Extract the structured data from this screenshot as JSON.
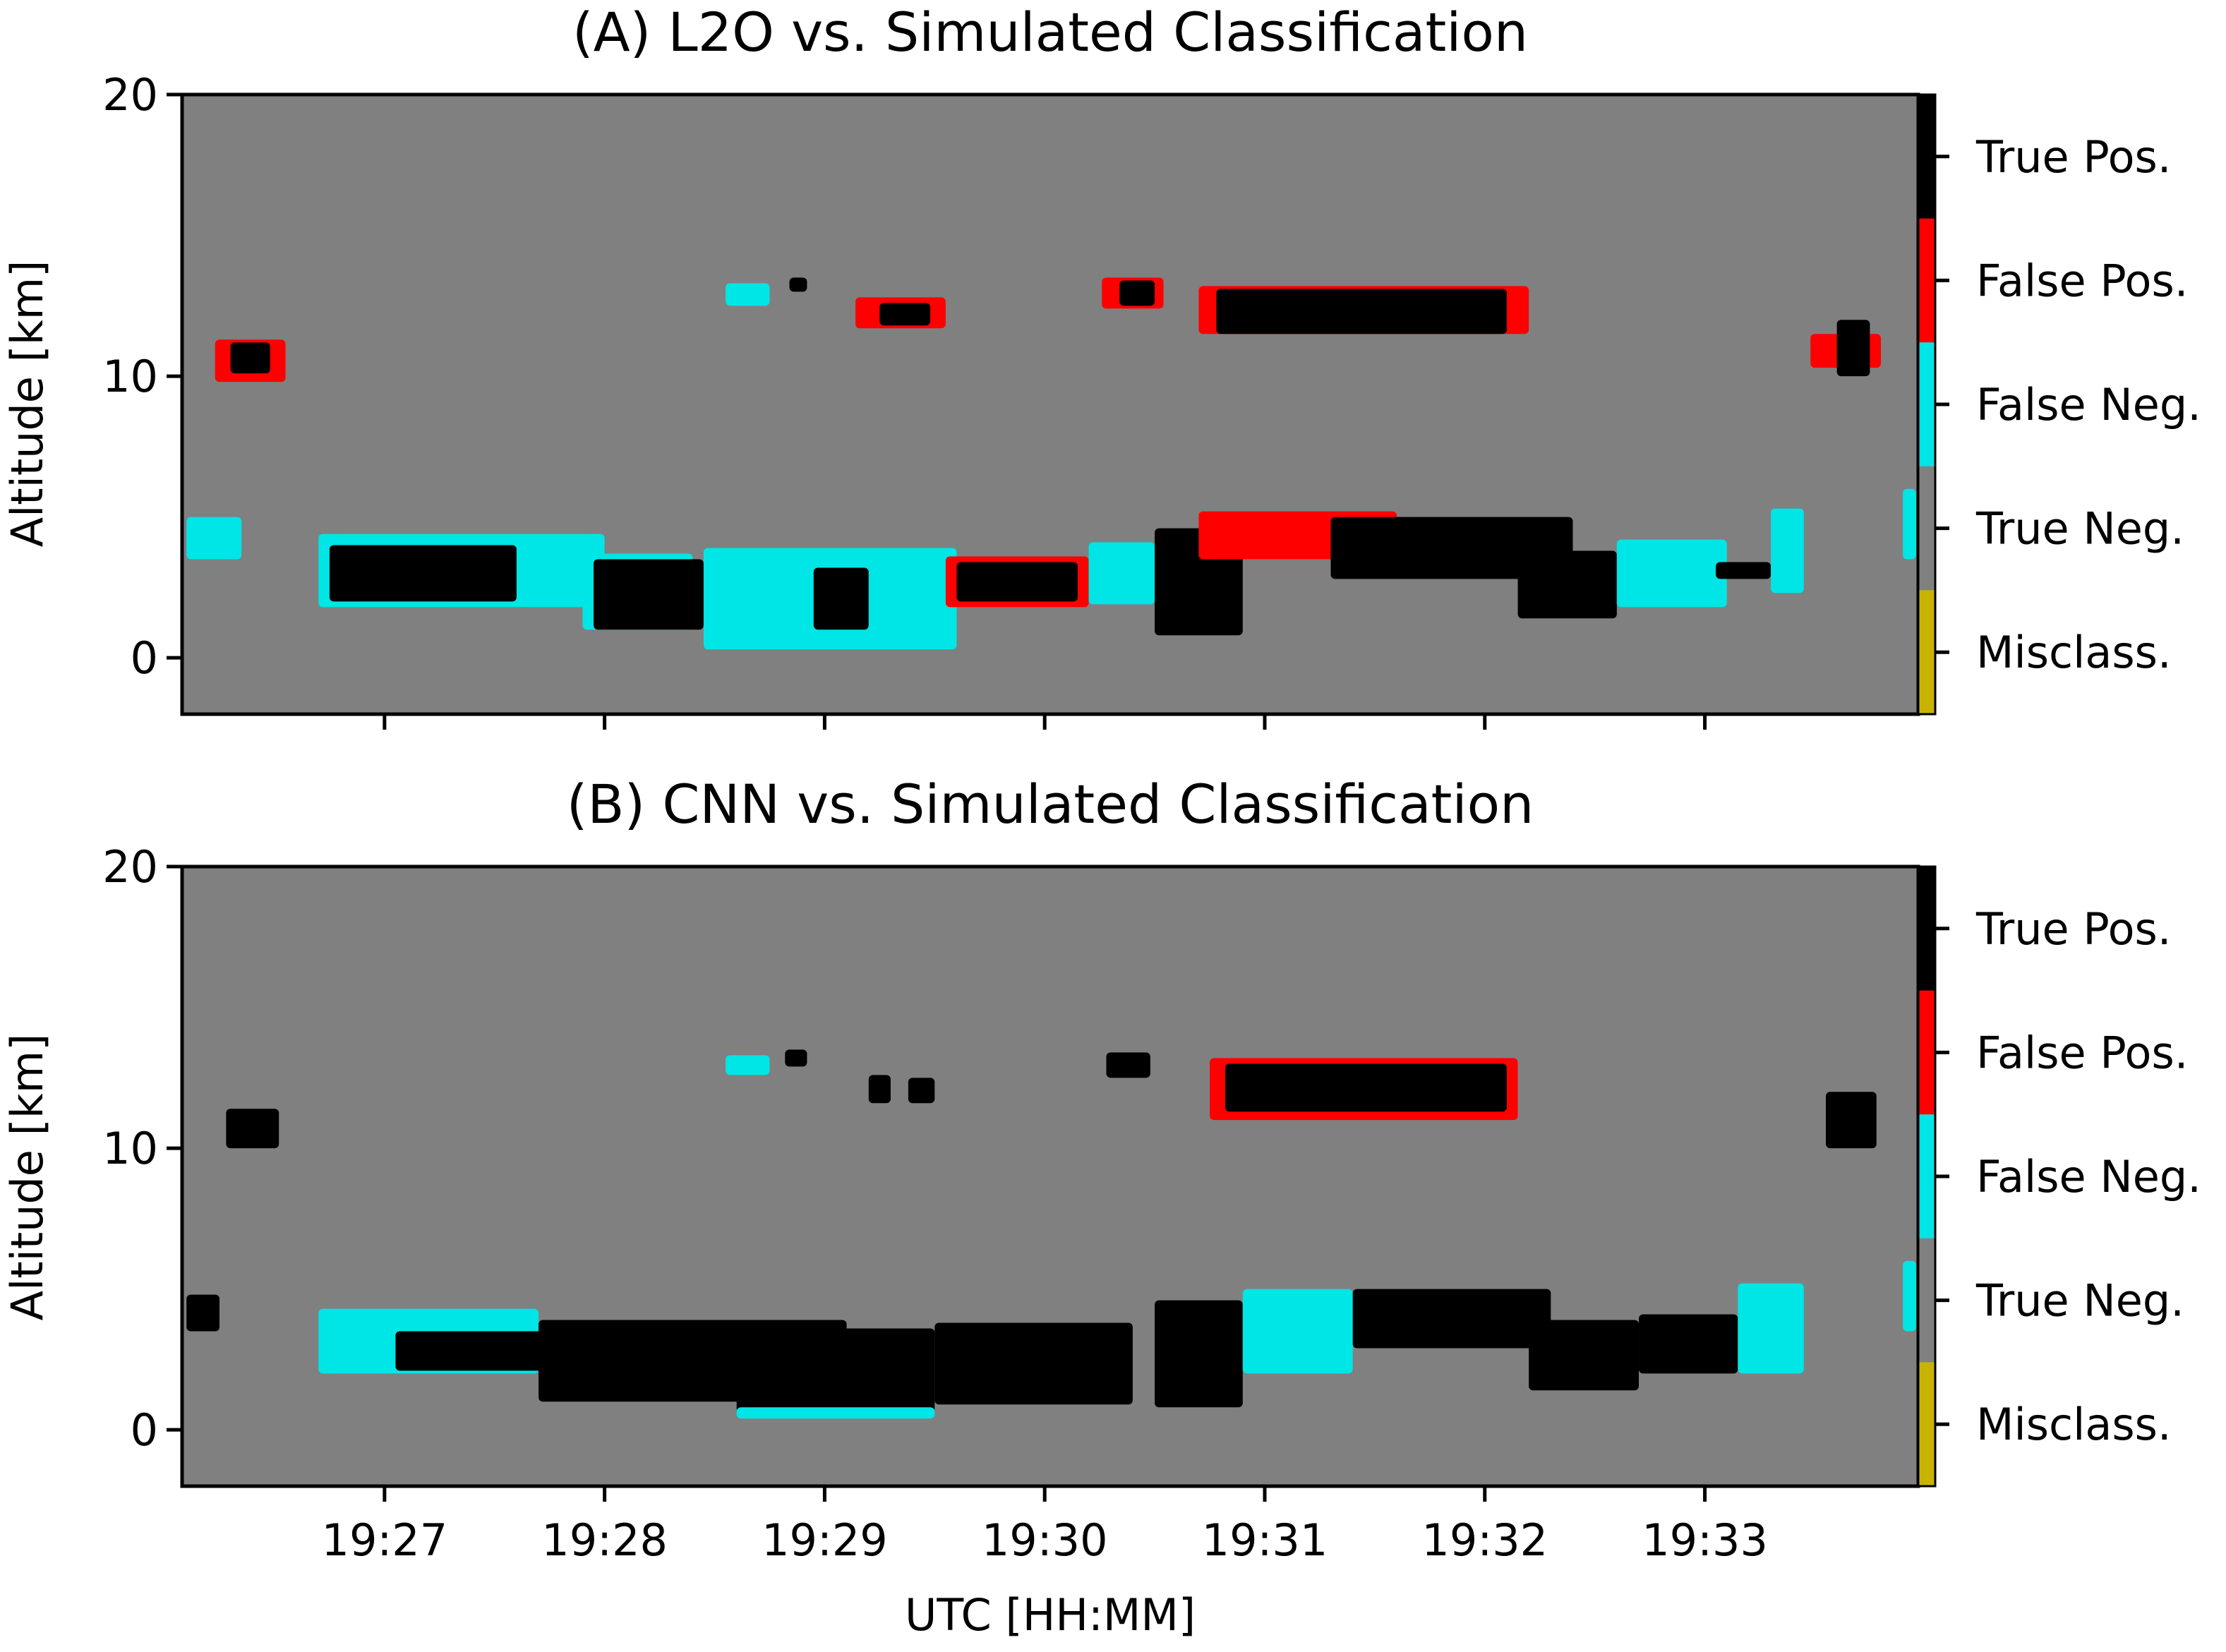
{
  "figure": {
    "xlabel": "UTC [HH:MM]"
  },
  "colors": {
    "true_pos": "#000000",
    "false_pos": "#ff0000",
    "false_neg": "#00e5e5",
    "true_neg": "#808080",
    "misclass": "#c8b400"
  },
  "chart_data": [
    {
      "type": "heatmap",
      "title": "(A) L2O vs. Simulated Classification",
      "xlabel": "",
      "ylabel": "Altitude [km]",
      "ylim": [
        -2,
        20
      ],
      "xlim_minutes": [
        26.08,
        33.97
      ],
      "y_ticks": [
        0,
        10,
        20
      ],
      "x_ticks": [
        {
          "value": 27,
          "label": "19:27"
        },
        {
          "value": 28,
          "label": "19:28"
        },
        {
          "value": 29,
          "label": "19:29"
        },
        {
          "value": 30,
          "label": "19:30"
        },
        {
          "value": 31,
          "label": "19:31"
        },
        {
          "value": 32,
          "label": "19:32"
        },
        {
          "value": 33,
          "label": "19:33"
        }
      ],
      "x_tick_labels_visible": false,
      "colorbar": [
        "True Pos.",
        "False Pos.",
        "False Neg.",
        "True Neg.",
        "Misclass."
      ],
      "background_class": "true_neg",
      "regions": [
        {
          "cls": "false_pos",
          "x0": 26.23,
          "x1": 26.55,
          "y0": 9.8,
          "y1": 11.3
        },
        {
          "cls": "true_pos",
          "x0": 26.3,
          "x1": 26.48,
          "y0": 10.1,
          "y1": 11.2
        },
        {
          "cls": "false_neg",
          "x0": 28.55,
          "x1": 28.75,
          "y0": 12.5,
          "y1": 13.3
        },
        {
          "cls": "true_pos",
          "x0": 28.84,
          "x1": 28.92,
          "y0": 13.0,
          "y1": 13.5
        },
        {
          "cls": "false_pos",
          "x0": 29.14,
          "x1": 29.55,
          "y0": 11.7,
          "y1": 12.8
        },
        {
          "cls": "true_pos",
          "x0": 29.25,
          "x1": 29.48,
          "y0": 11.8,
          "y1": 12.6
        },
        {
          "cls": "false_pos",
          "x0": 30.26,
          "x1": 30.54,
          "y0": 12.4,
          "y1": 13.5
        },
        {
          "cls": "true_pos",
          "x0": 30.34,
          "x1": 30.5,
          "y0": 12.5,
          "y1": 13.4
        },
        {
          "cls": "false_pos",
          "x0": 30.7,
          "x1": 32.2,
          "y0": 11.5,
          "y1": 13.2
        },
        {
          "cls": "true_pos",
          "x0": 30.78,
          "x1": 32.1,
          "y0": 11.5,
          "y1": 13.1
        },
        {
          "cls": "false_pos",
          "x0": 33.48,
          "x1": 33.8,
          "y0": 10.3,
          "y1": 11.5
        },
        {
          "cls": "true_pos",
          "x0": 33.6,
          "x1": 33.75,
          "y0": 10.0,
          "y1": 12.0
        },
        {
          "cls": "false_neg",
          "x0": 26.1,
          "x1": 26.35,
          "y0": 3.5,
          "y1": 5.0
        },
        {
          "cls": "false_neg",
          "x0": 26.7,
          "x1": 28.0,
          "y0": 1.8,
          "y1": 4.4
        },
        {
          "cls": "true_pos",
          "x0": 26.75,
          "x1": 27.6,
          "y0": 2.0,
          "y1": 4.0
        },
        {
          "cls": "false_neg",
          "x0": 27.9,
          "x1": 28.4,
          "y0": 1.0,
          "y1": 3.7
        },
        {
          "cls": "true_pos",
          "x0": 27.95,
          "x1": 28.45,
          "y0": 1.0,
          "y1": 3.5
        },
        {
          "cls": "false_neg",
          "x0": 28.45,
          "x1": 29.6,
          "y0": 0.3,
          "y1": 3.9
        },
        {
          "cls": "true_pos",
          "x0": 28.95,
          "x1": 29.2,
          "y0": 1.0,
          "y1": 3.2
        },
        {
          "cls": "false_pos",
          "x0": 29.55,
          "x1": 30.2,
          "y0": 1.8,
          "y1": 3.6
        },
        {
          "cls": "true_pos",
          "x0": 29.6,
          "x1": 30.15,
          "y0": 2.0,
          "y1": 3.4
        },
        {
          "cls": "false_neg",
          "x0": 30.2,
          "x1": 30.5,
          "y0": 1.9,
          "y1": 4.1
        },
        {
          "cls": "true_pos",
          "x0": 30.5,
          "x1": 30.9,
          "y0": 0.8,
          "y1": 4.6
        },
        {
          "cls": "false_pos",
          "x0": 30.7,
          "x1": 31.6,
          "y0": 3.5,
          "y1": 5.2
        },
        {
          "cls": "true_pos",
          "x0": 31.3,
          "x1": 32.4,
          "y0": 2.8,
          "y1": 5.0
        },
        {
          "cls": "true_pos",
          "x0": 32.15,
          "x1": 32.6,
          "y0": 1.4,
          "y1": 3.8
        },
        {
          "cls": "false_neg",
          "x0": 32.6,
          "x1": 33.1,
          "y0": 1.8,
          "y1": 4.2
        },
        {
          "cls": "true_pos",
          "x0": 33.05,
          "x1": 33.3,
          "y0": 2.8,
          "y1": 3.4
        },
        {
          "cls": "false_neg",
          "x0": 33.3,
          "x1": 33.45,
          "y0": 2.3,
          "y1": 5.3
        },
        {
          "cls": "false_neg",
          "x0": 33.9,
          "x1": 33.96,
          "y0": 3.5,
          "y1": 6.0
        }
      ]
    },
    {
      "type": "heatmap",
      "title": "(B) CNN vs. Simulated Classification",
      "xlabel": "UTC [HH:MM]",
      "ylabel": "Altitude [km]",
      "ylim": [
        -2,
        20
      ],
      "xlim_minutes": [
        26.08,
        33.97
      ],
      "y_ticks": [
        0,
        10,
        20
      ],
      "x_ticks": [
        {
          "value": 27,
          "label": "19:27"
        },
        {
          "value": 28,
          "label": "19:28"
        },
        {
          "value": 29,
          "label": "19:29"
        },
        {
          "value": 30,
          "label": "19:30"
        },
        {
          "value": 31,
          "label": "19:31"
        },
        {
          "value": 32,
          "label": "19:32"
        },
        {
          "value": 33,
          "label": "19:33"
        }
      ],
      "x_tick_labels_visible": true,
      "colorbar": [
        "True Pos.",
        "False Pos.",
        "False Neg.",
        "True Neg.",
        "Misclass."
      ],
      "background_class": "true_neg",
      "regions": [
        {
          "cls": "true_pos",
          "x0": 26.28,
          "x1": 26.52,
          "y0": 10.0,
          "y1": 11.4
        },
        {
          "cls": "false_neg",
          "x0": 28.55,
          "x1": 28.75,
          "y0": 12.6,
          "y1": 13.3
        },
        {
          "cls": "true_pos",
          "x0": 28.82,
          "x1": 28.92,
          "y0": 12.9,
          "y1": 13.5
        },
        {
          "cls": "true_pos",
          "x0": 29.2,
          "x1": 29.3,
          "y0": 11.6,
          "y1": 12.6
        },
        {
          "cls": "true_pos",
          "x0": 29.38,
          "x1": 29.5,
          "y0": 11.6,
          "y1": 12.5
        },
        {
          "cls": "true_pos",
          "x0": 30.28,
          "x1": 30.48,
          "y0": 12.5,
          "y1": 13.4
        },
        {
          "cls": "false_pos",
          "x0": 30.75,
          "x1": 32.15,
          "y0": 11.0,
          "y1": 13.2
        },
        {
          "cls": "true_pos",
          "x0": 30.82,
          "x1": 32.1,
          "y0": 11.3,
          "y1": 13.0
        },
        {
          "cls": "true_pos",
          "x0": 33.55,
          "x1": 33.78,
          "y0": 10.0,
          "y1": 12.0
        },
        {
          "cls": "true_pos",
          "x0": 26.1,
          "x1": 26.25,
          "y0": 3.5,
          "y1": 4.8
        },
        {
          "cls": "false_neg",
          "x0": 26.7,
          "x1": 27.7,
          "y0": 2.0,
          "y1": 4.3
        },
        {
          "cls": "true_pos",
          "x0": 27.05,
          "x1": 27.75,
          "y0": 2.1,
          "y1": 3.5
        },
        {
          "cls": "true_pos",
          "x0": 27.7,
          "x1": 29.1,
          "y0": 1.0,
          "y1": 3.9
        },
        {
          "cls": "true_pos",
          "x0": 28.6,
          "x1": 29.5,
          "y0": 0.6,
          "y1": 3.6
        },
        {
          "cls": "false_neg",
          "x0": 28.6,
          "x1": 29.5,
          "y0": 0.4,
          "y1": 0.8
        },
        {
          "cls": "true_pos",
          "x0": 29.5,
          "x1": 30.4,
          "y0": 0.9,
          "y1": 3.8
        },
        {
          "cls": "true_pos",
          "x0": 30.5,
          "x1": 30.9,
          "y0": 0.8,
          "y1": 4.6
        },
        {
          "cls": "false_neg",
          "x0": 30.9,
          "x1": 31.4,
          "y0": 2.0,
          "y1": 5.0
        },
        {
          "cls": "true_pos",
          "x0": 31.4,
          "x1": 32.3,
          "y0": 2.9,
          "y1": 5.0
        },
        {
          "cls": "true_pos",
          "x0": 32.2,
          "x1": 32.7,
          "y0": 1.4,
          "y1": 3.9
        },
        {
          "cls": "true_pos",
          "x0": 32.7,
          "x1": 33.15,
          "y0": 2.0,
          "y1": 4.1
        },
        {
          "cls": "false_neg",
          "x0": 33.15,
          "x1": 33.45,
          "y0": 2.0,
          "y1": 5.2
        },
        {
          "cls": "false_neg",
          "x0": 33.9,
          "x1": 33.96,
          "y0": 3.5,
          "y1": 6.0
        }
      ]
    }
  ]
}
